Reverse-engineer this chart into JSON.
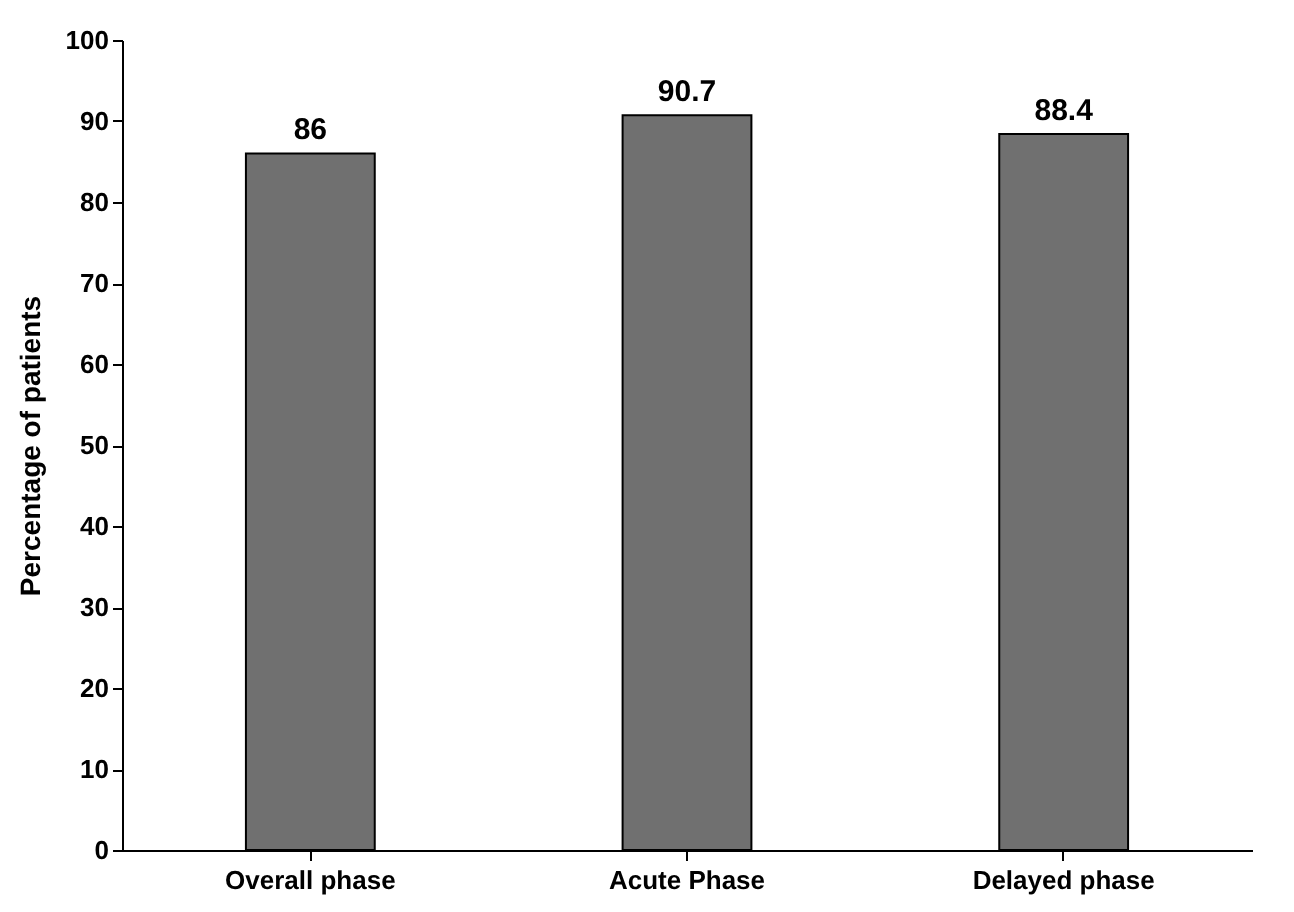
{
  "chart_data": {
    "type": "bar",
    "ylabel": "Percentage of patients",
    "categories": [
      "Overall phase",
      "Acute Phase",
      "Delayed phase"
    ],
    "values": [
      86,
      90.7,
      88.4
    ],
    "color": "#707070",
    "ylim": [
      0,
      100
    ],
    "yticks": [
      0,
      10,
      20,
      30,
      40,
      50,
      60,
      70,
      80,
      90,
      100
    ],
    "grid": false,
    "data_labels": true
  }
}
